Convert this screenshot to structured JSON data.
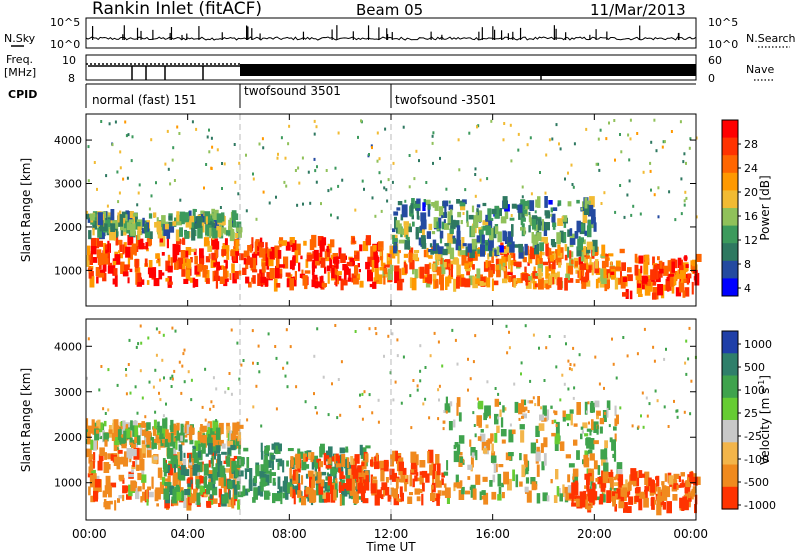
{
  "header": {
    "station": "Rankin Inlet (fitACF)",
    "beam": "Beam 05",
    "date": "11/Mar/2013"
  },
  "top_strips": {
    "nsky_label": "N.Sky",
    "nsky_ticks": [
      "10^5",
      "10^0"
    ],
    "nsearch_label": "N.Search",
    "nsearch_ticks": [
      "10^5",
      "10^0"
    ],
    "freq_label": "Freq.",
    "freq_unit": "[MHz]",
    "freq_ticks": [
      "10",
      "8"
    ],
    "nave_label": "Nave",
    "nave_ticks": [
      "60",
      "0"
    ],
    "cpid_label": "CPID",
    "cpid_segments": [
      {
        "name": "normal (fast) 151",
        "start": 0,
        "end": 6
      },
      {
        "name": "twofsound 3501",
        "start": 6,
        "end": 12
      },
      {
        "name": "twofsound -3501",
        "start": 12,
        "end": 24
      }
    ]
  },
  "chart_data": [
    {
      "type": "heatmap",
      "parameter": "Power",
      "ylabel": "Slant Range [km]",
      "colorbar_label": "Power [dB]",
      "colorbar_ticks": [
        "28",
        "24",
        "20",
        "16",
        "12",
        "8",
        "4"
      ],
      "colorbar_colors": [
        "#ff0000",
        "#ff3300",
        "#ff6600",
        "#ff9900",
        "#f2bb33",
        "#90c15a",
        "#3c9a5c",
        "#2e7860",
        "#244aa0",
        "#0000ff"
      ],
      "ylim": [
        180,
        4600
      ],
      "yticks": [
        "1000",
        "2000",
        "3000",
        "4000"
      ],
      "xlim_hours": [
        0,
        24
      ],
      "bands": [
        {
          "t0": 0,
          "t1": 6,
          "r0": 700,
          "r1": 1700,
          "dB": 26
        },
        {
          "t0": 0,
          "t1": 6,
          "r0": 1800,
          "r1": 2300,
          "dB": 12
        },
        {
          "t0": 6,
          "t1": 11.5,
          "r0": 650,
          "r1": 1700,
          "dB": 27
        },
        {
          "t0": 11.5,
          "t1": 21,
          "r0": 650,
          "r1": 1500,
          "dB": 22
        },
        {
          "t0": 12,
          "t1": 20,
          "r0": 1400,
          "r1": 2600,
          "dB": 10
        },
        {
          "t0": 21,
          "t1": 24,
          "r0": 400,
          "r1": 1300,
          "dB": 26
        }
      ]
    },
    {
      "type": "heatmap",
      "parameter": "Velocity",
      "ylabel": "Slant Range [km]",
      "colorbar_label": "Velocity [m s",
      "colorbar_label_sup": "-1",
      "colorbar_label_end": "]",
      "colorbar_ticks": [
        "1000",
        "500",
        "100",
        "25",
        "-25",
        "-100",
        "-500",
        "-1000"
      ],
      "colorbar_colors": [
        "#1f3fa8",
        "#2f7f6a",
        "#3fa34d",
        "#66cc33",
        "#c8c8c8",
        "#f3b54a",
        "#f08a1e",
        "#ff3300"
      ],
      "ylim": [
        180,
        4600
      ],
      "yticks": [
        "1000",
        "2000",
        "3000",
        "4000"
      ],
      "xlim_hours": [
        0,
        24
      ],
      "xticks": [
        "00:00",
        "04:00",
        "08:00",
        "12:00",
        "16:00",
        "20:00",
        "00:00"
      ],
      "xlabel": "Time UT",
      "bands": [
        {
          "t0": 0,
          "t1": 6,
          "r0": 500,
          "r1": 1700,
          "v": -200
        },
        {
          "t0": 0,
          "t1": 6,
          "r0": 1800,
          "r1": 2300,
          "v": 0
        },
        {
          "t0": 3,
          "t1": 11,
          "r0": 600,
          "r1": 1800,
          "v": 300
        },
        {
          "t0": 8,
          "t1": 14,
          "r0": 600,
          "r1": 1600,
          "v": -300
        },
        {
          "t0": 14,
          "t1": 21,
          "r0": 600,
          "r1": 2800,
          "v": 0
        },
        {
          "t0": 19,
          "t1": 24,
          "r0": 400,
          "r1": 1200,
          "v": -300
        }
      ]
    }
  ]
}
